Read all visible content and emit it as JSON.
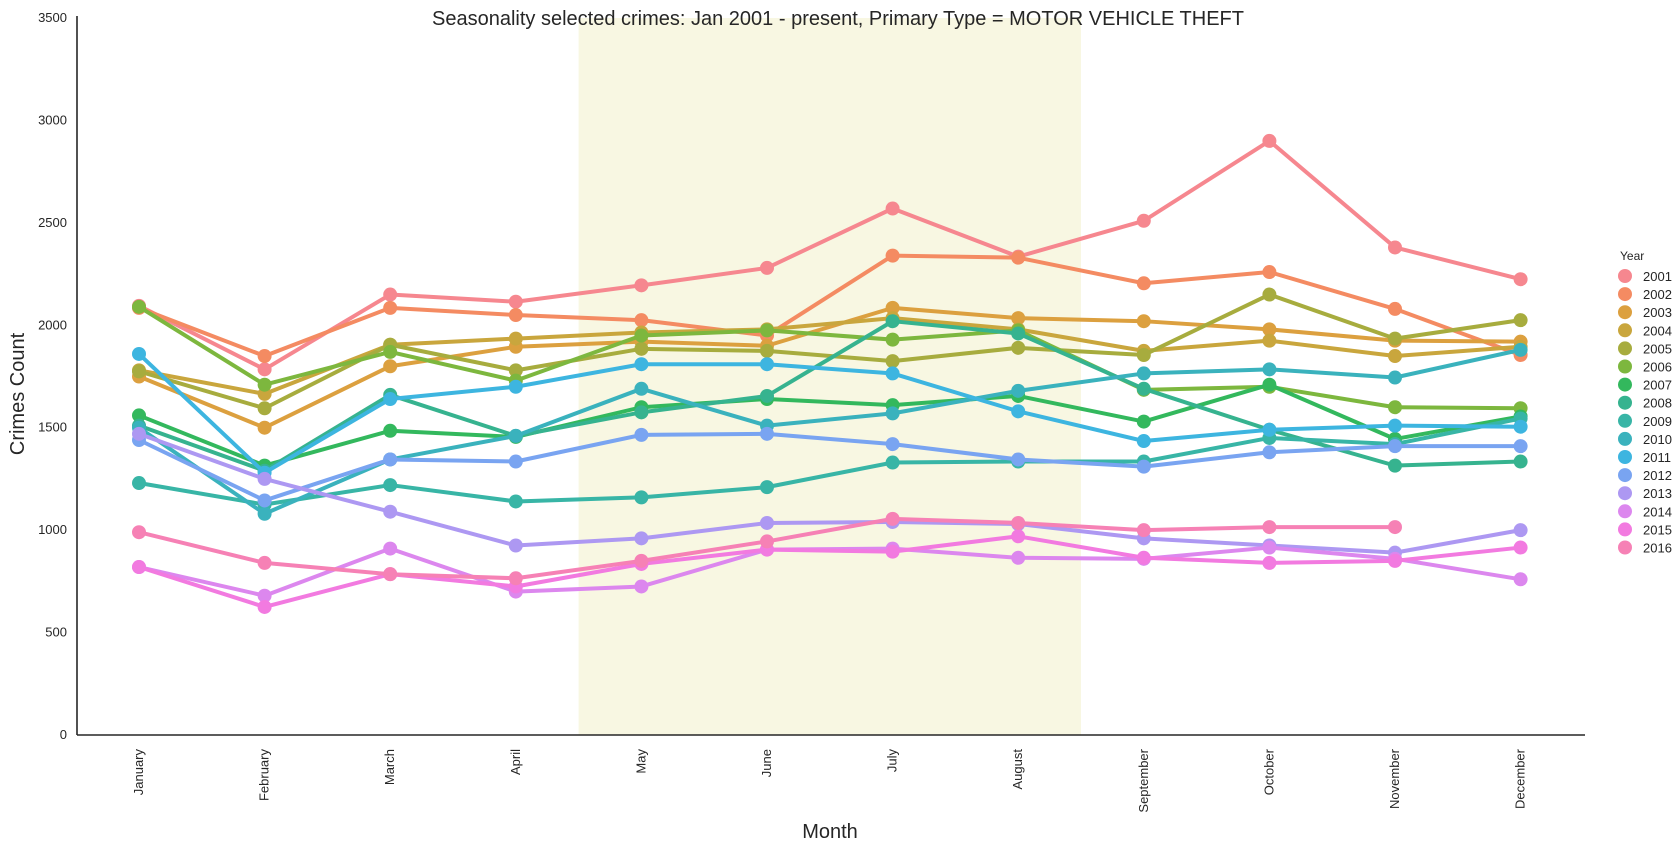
{
  "chart_data": {
    "type": "line",
    "title": "Seasonality selected crimes: Jan 2001 - present, Primary Type = MOTOR VEHICLE THEFT",
    "xlabel": "Month",
    "ylabel": "Crimes Count",
    "ylim": [
      0,
      3500
    ],
    "yticks": [
      0,
      500,
      1000,
      1500,
      2000,
      2500,
      3000,
      3500
    ],
    "categories": [
      "January",
      "February",
      "March",
      "April",
      "May",
      "June",
      "July",
      "August",
      "September",
      "October",
      "November",
      "December"
    ],
    "highlight_span": {
      "from": "May",
      "to": "August",
      "color": "#f8f7e2"
    },
    "grid": false,
    "legend": {
      "title": "Year",
      "placement": "right"
    },
    "series": [
      {
        "name": "2001",
        "color": "#f6878f",
        "values": [
          2095,
          1785,
          2150,
          2115,
          2195,
          2280,
          2570,
          2335,
          2510,
          2900,
          2380,
          2225
        ]
      },
      {
        "name": "2002",
        "color": "#f48b62",
        "values": [
          2085,
          1850,
          2085,
          2050,
          2025,
          1950,
          2340,
          2330,
          2205,
          2260,
          2080,
          1855
        ]
      },
      {
        "name": "2003",
        "color": "#dca03f",
        "values": [
          1750,
          1500,
          1800,
          1895,
          1920,
          1900,
          2085,
          2035,
          2020,
          1980,
          1925,
          1920
        ]
      },
      {
        "name": "2004",
        "color": "#c9a63d",
        "values": [
          1780,
          1665,
          1905,
          1935,
          1965,
          1980,
          2035,
          1980,
          1875,
          1925,
          1850,
          1895
        ]
      },
      {
        "name": "2005",
        "color": "#a7ac3e",
        "values": [
          1775,
          1595,
          1905,
          1780,
          1885,
          1875,
          1825,
          1890,
          1855,
          2150,
          1935,
          2025
        ]
      },
      {
        "name": "2006",
        "color": "#7db73e",
        "values": [
          2090,
          1710,
          1870,
          1730,
          1950,
          1975,
          1930,
          1975,
          1685,
          1700,
          1600,
          1595
        ]
      },
      {
        "name": "2007",
        "color": "#33b85d",
        "values": [
          1560,
          1315,
          1485,
          1455,
          1600,
          1640,
          1610,
          1655,
          1530,
          1710,
          1445,
          1555
        ]
      },
      {
        "name": "2008",
        "color": "#36b38f",
        "values": [
          1510,
          1290,
          1660,
          1460,
          1575,
          1655,
          2020,
          1960,
          1690,
          1490,
          1315,
          1335
        ]
      },
      {
        "name": "2009",
        "color": "#38b5a6",
        "values": [
          1230,
          1125,
          1220,
          1140,
          1160,
          1210,
          1330,
          1335,
          1335,
          1450,
          1420,
          1545
        ]
      },
      {
        "name": "2010",
        "color": "#3ab2bd",
        "values": [
          1500,
          1080,
          1345,
          1460,
          1690,
          1510,
          1570,
          1680,
          1765,
          1785,
          1745,
          1880
        ]
      },
      {
        "name": "2011",
        "color": "#3db5e0",
        "values": [
          1860,
          1280,
          1640,
          1700,
          1810,
          1810,
          1765,
          1580,
          1435,
          1490,
          1510,
          1505
        ]
      },
      {
        "name": "2012",
        "color": "#79a4f1",
        "values": [
          1440,
          1145,
          1345,
          1335,
          1465,
          1470,
          1420,
          1345,
          1310,
          1380,
          1410,
          1410
        ]
      },
      {
        "name": "2013",
        "color": "#ad98f2",
        "values": [
          1470,
          1250,
          1090,
          925,
          960,
          1035,
          1040,
          1030,
          960,
          925,
          890,
          1000
        ]
      },
      {
        "name": "2014",
        "color": "#dc87ee",
        "values": [
          820,
          680,
          910,
          700,
          725,
          905,
          910,
          865,
          860,
          915,
          860,
          760
        ]
      },
      {
        "name": "2015",
        "color": "#f27ae0",
        "values": [
          820,
          625,
          785,
          725,
          835,
          905,
          895,
          970,
          865,
          840,
          850,
          915
        ]
      },
      {
        "name": "2016",
        "color": "#f681b5",
        "values": [
          990,
          840,
          785,
          765,
          850,
          945,
          1055,
          1035,
          1000,
          1015,
          1015,
          null
        ]
      }
    ]
  }
}
